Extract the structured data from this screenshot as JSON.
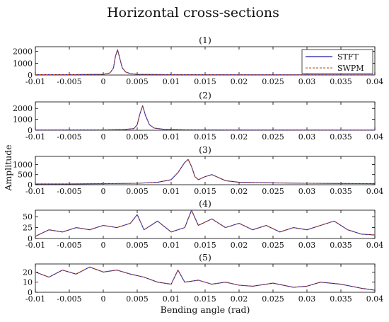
{
  "figure": {
    "title": "Horizontal cross-sections",
    "xlabel": "Bending angle (rad)",
    "ylabel": "Amplitude"
  },
  "colors": {
    "stft": "#1a1aa6",
    "swpm": "#b5461c",
    "axis": "#000000"
  },
  "legend": {
    "placement": "top-right of panel (1)",
    "entries": [
      "STFT",
      "SWPM"
    ]
  },
  "chart_data": [
    {
      "type": "line",
      "panel_label": "(1)",
      "xlim": [
        -0.01,
        0.04
      ],
      "ylim": [
        0,
        2400
      ],
      "yticks": [
        0,
        1000,
        2000
      ],
      "xticks": [
        "-0.01",
        "-0.005",
        "0",
        "0.005",
        "0.01",
        "0.015",
        "0.02",
        "0.025",
        "0.03",
        "0.035",
        "0.04"
      ],
      "series": [
        {
          "name": "STFT",
          "x": [
            -0.01,
            -0.005,
            0.0,
            0.001,
            0.0015,
            0.0018,
            0.0021,
            0.0024,
            0.0028,
            0.0033,
            0.004,
            0.005,
            0.01,
            0.02,
            0.04
          ],
          "y": [
            30,
            30,
            60,
            180,
            600,
            1600,
            2150,
            1500,
            600,
            250,
            120,
            60,
            30,
            20,
            15
          ]
        },
        {
          "name": "SWPM",
          "x": [
            -0.01,
            -0.005,
            0.0,
            0.001,
            0.0015,
            0.0018,
            0.0021,
            0.0024,
            0.0028,
            0.0033,
            0.004,
            0.005,
            0.01,
            0.02,
            0.04
          ],
          "y": [
            30,
            30,
            60,
            180,
            600,
            1600,
            2150,
            1500,
            600,
            250,
            120,
            60,
            30,
            20,
            15
          ]
        }
      ]
    },
    {
      "type": "line",
      "panel_label": "(2)",
      "xlim": [
        -0.01,
        0.04
      ],
      "ylim": [
        0,
        2600
      ],
      "yticks": [
        0,
        1000,
        2000
      ],
      "xticks": [
        "-0.01",
        "-0.005",
        "0",
        "0.005",
        "0.01",
        "0.015",
        "0.02",
        "0.025",
        "0.03",
        "0.035",
        "0.04"
      ],
      "series": [
        {
          "name": "STFT",
          "x": [
            -0.01,
            0.0,
            0.003,
            0.0045,
            0.005,
            0.0054,
            0.0058,
            0.0062,
            0.0068,
            0.0075,
            0.009,
            0.012,
            0.02,
            0.04
          ],
          "y": [
            20,
            30,
            60,
            150,
            500,
            1500,
            2250,
            1400,
            500,
            200,
            80,
            40,
            20,
            15
          ]
        },
        {
          "name": "SWPM",
          "x": [
            -0.01,
            0.0,
            0.003,
            0.0045,
            0.005,
            0.0054,
            0.0058,
            0.0062,
            0.0068,
            0.0075,
            0.009,
            0.012,
            0.02,
            0.04
          ],
          "y": [
            20,
            30,
            60,
            150,
            500,
            1500,
            2250,
            1400,
            500,
            200,
            80,
            40,
            20,
            15
          ]
        }
      ]
    },
    {
      "type": "line",
      "panel_label": "(3)",
      "xlim": [
        -0.01,
        0.04
      ],
      "ylim": [
        0,
        1400
      ],
      "yticks": [
        0,
        500,
        1000
      ],
      "xticks": [
        "-0.01",
        "-0.005",
        "0",
        "0.005",
        "0.01",
        "0.015",
        "0.02",
        "0.025",
        "0.03",
        "0.035",
        "0.04"
      ],
      "series": [
        {
          "name": "STFT",
          "x": [
            -0.01,
            -0.005,
            0.0,
            0.005,
            0.008,
            0.01,
            0.011,
            0.0115,
            0.012,
            0.0125,
            0.013,
            0.0135,
            0.014,
            0.015,
            0.016,
            0.017,
            0.018,
            0.02,
            0.025,
            0.03,
            0.035,
            0.04
          ],
          "y": [
            40,
            40,
            50,
            70,
            120,
            250,
            600,
            850,
            1100,
            1250,
            900,
            400,
            250,
            400,
            500,
            350,
            200,
            120,
            90,
            70,
            60,
            50
          ]
        },
        {
          "name": "SWPM",
          "x": [
            -0.01,
            -0.005,
            0.0,
            0.005,
            0.008,
            0.01,
            0.011,
            0.0115,
            0.012,
            0.0125,
            0.013,
            0.0135,
            0.014,
            0.015,
            0.016,
            0.017,
            0.018,
            0.02,
            0.025,
            0.03,
            0.035,
            0.04
          ],
          "y": [
            40,
            40,
            50,
            70,
            120,
            250,
            600,
            850,
            1100,
            1250,
            900,
            400,
            250,
            400,
            500,
            350,
            200,
            120,
            90,
            70,
            60,
            50
          ]
        }
      ]
    },
    {
      "type": "line",
      "panel_label": "(4)",
      "xlim": [
        -0.01,
        0.04
      ],
      "ylim": [
        0,
        65
      ],
      "yticks": [
        0,
        25,
        50
      ],
      "xticks": [
        "-0.01",
        "-0.005",
        "0",
        "0.005",
        "0.01",
        "0.015",
        "0.02",
        "0.025",
        "0.03",
        "0.035",
        "0.04"
      ],
      "series": [
        {
          "name": "STFT",
          "x": [
            -0.01,
            -0.008,
            -0.006,
            -0.004,
            -0.002,
            0.0,
            0.002,
            0.004,
            0.005,
            0.006,
            0.008,
            0.01,
            0.012,
            0.013,
            0.014,
            0.016,
            0.018,
            0.02,
            0.022,
            0.024,
            0.026,
            0.028,
            0.03,
            0.032,
            0.034,
            0.036,
            0.038,
            0.04
          ],
          "y": [
            5,
            20,
            15,
            25,
            20,
            30,
            25,
            35,
            55,
            20,
            40,
            15,
            25,
            65,
            30,
            45,
            25,
            35,
            20,
            30,
            15,
            25,
            20,
            30,
            40,
            20,
            10,
            8
          ]
        },
        {
          "name": "SWPM",
          "x": [
            -0.01,
            -0.008,
            -0.006,
            -0.004,
            -0.002,
            0.0,
            0.002,
            0.004,
            0.005,
            0.006,
            0.008,
            0.01,
            0.012,
            0.013,
            0.014,
            0.016,
            0.018,
            0.02,
            0.022,
            0.024,
            0.026,
            0.028,
            0.03,
            0.032,
            0.034,
            0.036,
            0.038,
            0.04
          ],
          "y": [
            5,
            20,
            15,
            25,
            20,
            30,
            25,
            35,
            55,
            20,
            40,
            15,
            25,
            65,
            30,
            45,
            25,
            35,
            20,
            30,
            15,
            25,
            20,
            30,
            40,
            20,
            10,
            8
          ]
        }
      ]
    },
    {
      "type": "line",
      "panel_label": "(5)",
      "xlim": [
        -0.01,
        0.04
      ],
      "ylim": [
        0,
        28
      ],
      "yticks": [
        0,
        10,
        20
      ],
      "xticks": [
        "-0.01",
        "-0.005",
        "0",
        "0.005",
        "0.01",
        "0.015",
        "0.02",
        "0.025",
        "0.03",
        "0.035",
        "0.04"
      ],
      "series": [
        {
          "name": "STFT",
          "x": [
            -0.01,
            -0.008,
            -0.006,
            -0.004,
            -0.002,
            0.0,
            0.002,
            0.004,
            0.006,
            0.008,
            0.01,
            0.011,
            0.012,
            0.014,
            0.016,
            0.018,
            0.02,
            0.022,
            0.025,
            0.028,
            0.03,
            0.032,
            0.035,
            0.038,
            0.04
          ],
          "y": [
            20,
            15,
            22,
            18,
            25,
            20,
            22,
            18,
            15,
            10,
            8,
            22,
            10,
            12,
            8,
            10,
            7,
            6,
            9,
            5,
            6,
            10,
            8,
            4,
            2
          ]
        },
        {
          "name": "SWPM",
          "x": [
            -0.01,
            -0.008,
            -0.006,
            -0.004,
            -0.002,
            0.0,
            0.002,
            0.004,
            0.006,
            0.008,
            0.01,
            0.011,
            0.012,
            0.014,
            0.016,
            0.018,
            0.02,
            0.022,
            0.025,
            0.028,
            0.03,
            0.032,
            0.035,
            0.038,
            0.04
          ],
          "y": [
            20,
            15,
            22,
            18,
            25,
            20,
            22,
            18,
            15,
            10,
            8,
            22,
            10,
            12,
            8,
            10,
            7,
            6,
            9,
            5,
            6,
            10,
            8,
            4,
            2
          ]
        }
      ]
    }
  ]
}
